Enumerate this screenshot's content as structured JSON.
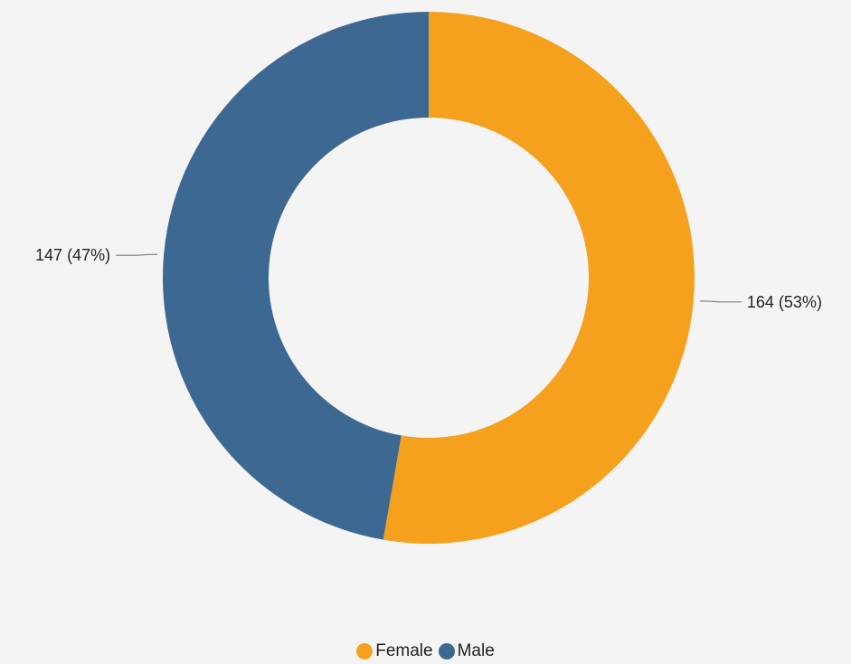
{
  "chart_data": {
    "type": "pie",
    "variant": "donut",
    "categories": [
      "Female",
      "Male"
    ],
    "values": [
      164,
      147
    ],
    "percentages": [
      53,
      47
    ],
    "data_labels": [
      "164 (53%)",
      "147 (47%)"
    ],
    "colors": [
      "#f6a11d",
      "#3d6892"
    ],
    "title": "",
    "legend": {
      "placement": "bottom-center",
      "items": [
        {
          "label": "Female",
          "color": "#f6a11d"
        },
        {
          "label": "Male",
          "color": "#3d6892"
        }
      ]
    }
  }
}
